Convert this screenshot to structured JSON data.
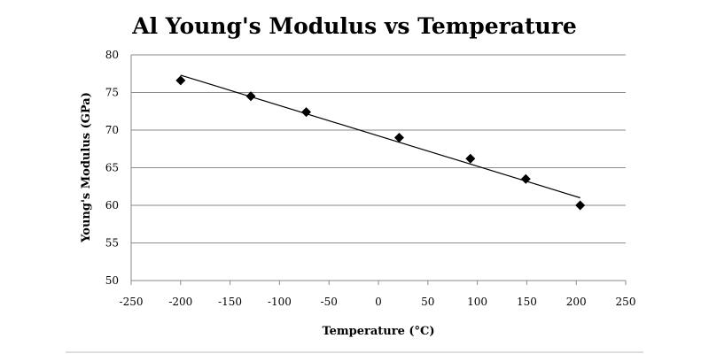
{
  "chart_data": {
    "type": "scatter",
    "title": "Al Young's Modulus vs Temperature",
    "xlabel": "Temperature (°C)",
    "ylabel": "Young's Modulus (GPa)",
    "xlim": [
      -250,
      250
    ],
    "ylim": [
      50,
      80
    ],
    "xticks": [
      -250,
      -200,
      -150,
      -100,
      -50,
      0,
      50,
      100,
      150,
      200,
      250
    ],
    "yticks": [
      50,
      55,
      60,
      65,
      70,
      75,
      80
    ],
    "grid": "horizontal",
    "legend": "none",
    "series": [
      {
        "name": "Young's Modulus",
        "marker": "diamond",
        "color": "#000000",
        "x": [
          -200,
          -129,
          -73,
          21,
          93,
          149,
          204
        ],
        "y": [
          76.6,
          74.5,
          72.4,
          69.0,
          66.2,
          63.5,
          60.0
        ]
      }
    ],
    "trendline": {
      "type": "linear",
      "color": "#000000",
      "x": [
        -200,
        204
      ],
      "y": [
        77.3,
        61.0
      ]
    }
  }
}
